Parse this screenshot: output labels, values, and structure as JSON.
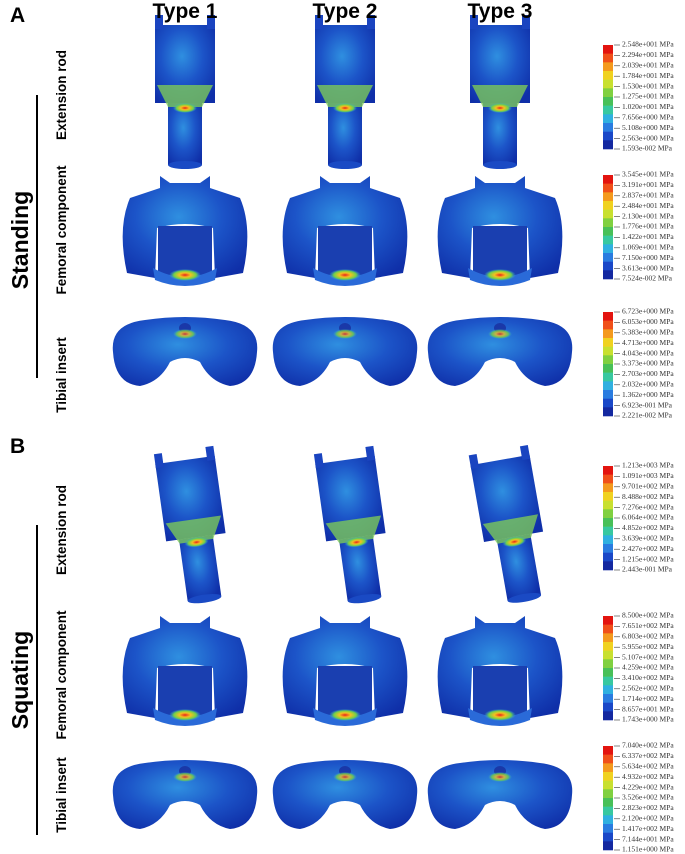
{
  "columns": [
    "Type 1",
    "Type 2",
    "Type 3"
  ],
  "panels": [
    {
      "label": "A",
      "posture": "Standing",
      "rows": [
        {
          "label": "Extension rod",
          "scale": [
            "2.548e+001 MPa",
            "2.294e+001 MPa",
            "2.039e+001 MPa",
            "1.784e+001 MPa",
            "1.530e+001 MPa",
            "1.275e+001 MPa",
            "1.020e+001 MPa",
            "7.656e+000 MPa",
            "5.108e+000 MPa",
            "2.563e+000 MPa",
            "1.593e-002 MPa"
          ]
        },
        {
          "label": "Femoral component",
          "scale": [
            "3.545e+001 MPa",
            "3.191e+001 MPa",
            "2.837e+001 MPa",
            "2.484e+001 MPa",
            "2.130e+001 MPa",
            "1.776e+001 MPa",
            "1.422e+001 MPa",
            "1.069e+001 MPa",
            "7.150e+000 MPa",
            "3.613e+000 MPa",
            "7.524e-002 MPa"
          ]
        },
        {
          "label": "Tibial insert",
          "scale": [
            "6.723e+000 MPa",
            "6.053e+000 MPa",
            "5.383e+000 MPa",
            "4.713e+000 MPa",
            "4.043e+000 MPa",
            "3.373e+000 MPa",
            "2.703e+000 MPa",
            "2.032e+000 MPa",
            "1.362e+000 MPa",
            "6.923e-001 MPa",
            "2.221e-002 MPa"
          ]
        }
      ]
    },
    {
      "label": "B",
      "posture": "Squating",
      "rows": [
        {
          "label": "Extension rod",
          "scale": [
            "1.213e+003 MPa",
            "1.091e+003 MPa",
            "9.701e+002 MPa",
            "8.488e+002 MPa",
            "7.276e+002 MPa",
            "6.064e+002 MPa",
            "4.852e+002 MPa",
            "3.639e+002 MPa",
            "2.427e+002 MPa",
            "1.215e+002 MPa",
            "2.443e-001 MPa"
          ]
        },
        {
          "label": "Femoral component",
          "scale": [
            "8.500e+002 MPa",
            "7.651e+002 MPa",
            "6.803e+002 MPa",
            "5.955e+002 MPa",
            "5.107e+002 MPa",
            "4.259e+002 MPa",
            "3.410e+002 MPa",
            "2.562e+002 MPa",
            "1.714e+002 MPa",
            "8.657e+001 MPa",
            "1.743e+000 MPa"
          ]
        },
        {
          "label": "Tibial insert",
          "scale": [
            "7.040e+002 MPa",
            "6.337e+002 MPa",
            "5.634e+002 MPa",
            "4.932e+002 MPa",
            "4.229e+002 MPa",
            "3.526e+002 MPa",
            "2.823e+002 MPa",
            "2.120e+002 MPa",
            "1.417e+002 MPa",
            "7.144e+001 MPa",
            "1.151e+000 MPa"
          ]
        }
      ]
    }
  ]
}
